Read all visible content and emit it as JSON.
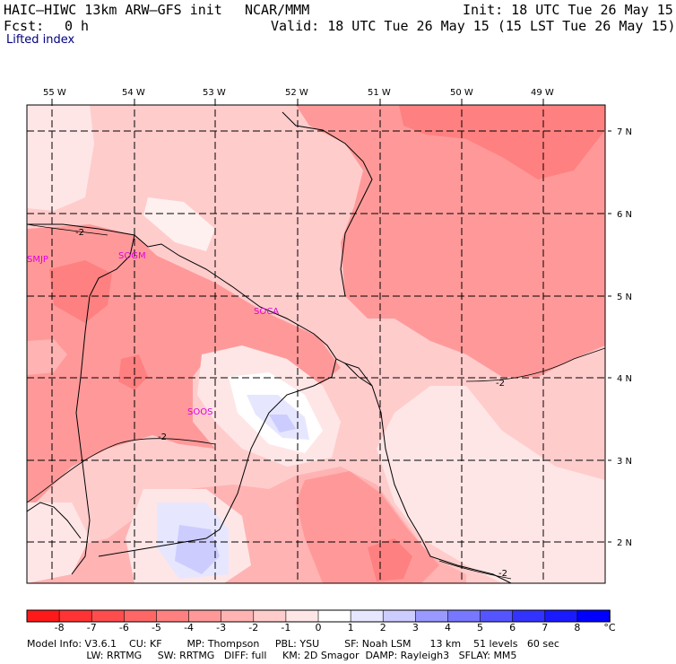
{
  "header": {
    "model": "HAIC—HIWC 13km ARW—GFS init",
    "org": "NCAR/MMM",
    "init": "Init: 18 UTC Tue 26 May 15",
    "fcst_label": "Fcst:",
    "fcst_value": "0 h",
    "valid": "Valid: 18 UTC Tue 26 May 15 (15 LST Tue 26 May 15)",
    "field": "Lifted index"
  },
  "map": {
    "lon_labels": [
      "55 W",
      "54 W",
      "53 W",
      "52 W",
      "51 W",
      "50 W",
      "49 W"
    ],
    "lat_labels": [
      "7 N",
      "6 N",
      "5 N",
      "4 N",
      "3 N",
      "2 N"
    ],
    "stations": [
      "SMJP",
      "SOGM",
      "SOCA",
      "SOOS"
    ],
    "contour_labels": [
      "-2",
      "-2",
      "-2",
      "-2"
    ]
  },
  "colorbar": {
    "ticks": [
      "-8",
      "-7",
      "-6",
      "-5",
      "-4",
      "-3",
      "-2",
      "-1",
      "0",
      "1",
      "2",
      "3",
      "4",
      "5",
      "6",
      "7",
      "8"
    ],
    "unit": "°C",
    "colors": [
      "#ff1a1a",
      "#ff3333",
      "#ff4d4d",
      "#ff6666",
      "#ff8080",
      "#ff9999",
      "#ffb3b3",
      "#ffcccc",
      "#ffe6e6",
      "#ffffff",
      "#e6e6ff",
      "#ccccff",
      "#9999ff",
      "#7777ff",
      "#5555ff",
      "#3333ff",
      "#1a1aff",
      "#0000ff"
    ]
  },
  "footer": {
    "line1": "Model Info: V3.6.1    CU: KF        MP: Thompson     PBL: YSU        SF: Noah LSM      13 km    51 levels   60 sec",
    "line2": "                   LW: RRTMG     SW: RRTMG   DIFF: full     KM: 2D Smagor  DAMP: Rayleigh3   SFLAY: MM5"
  }
}
